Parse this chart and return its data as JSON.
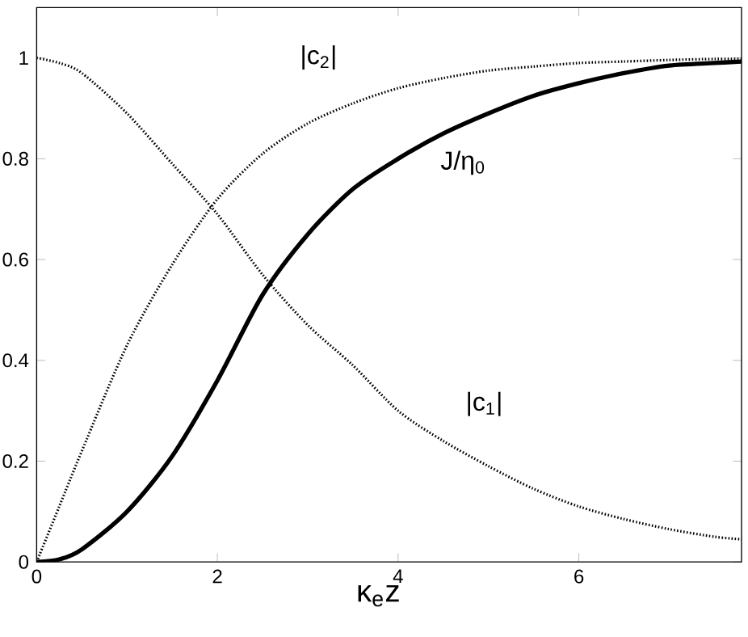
{
  "chart_data": {
    "type": "line",
    "xlabel": "κ$_{e}$z",
    "x": [
      0,
      0.25,
      0.5,
      1,
      1.5,
      2,
      2.5,
      3,
      3.5,
      4,
      4.5,
      5,
      5.5,
      6,
      6.5,
      7,
      7.5,
      7.8
    ],
    "series": [
      {
        "color": "#000000",
        "line_style": "dotted",
        "values": [
          1.0,
          0.99,
          0.97,
          0.89,
          0.79,
          0.69,
          0.57,
          0.47,
          0.39,
          0.3,
          0.24,
          0.19,
          0.145,
          0.11,
          0.085,
          0.065,
          0.05,
          0.045
        ]
      },
      {
        "color": "#000000",
        "line_style": "dotted",
        "values": [
          0,
          0.11,
          0.22,
          0.43,
          0.59,
          0.72,
          0.81,
          0.87,
          0.91,
          0.94,
          0.96,
          0.975,
          0.983,
          0.99,
          0.993,
          0.996,
          0.998,
          0.998
        ]
      },
      {
        "color": "#000000",
        "line_style": "solid",
        "values": [
          0,
          0.005,
          0.025,
          0.1,
          0.21,
          0.36,
          0.53,
          0.65,
          0.74,
          0.8,
          0.85,
          0.89,
          0.925,
          0.95,
          0.97,
          0.985,
          0.99,
          0.993
        ]
      }
    ],
    "annotations": [
      "|c$_{2}$|",
      "J/η$_{0}$",
      "|c$_{1}$|"
    ],
    "xlim": [
      0,
      7.8
    ],
    "ylim": [
      0,
      1.1
    ],
    "xticks": [
      0,
      2,
      4,
      6
    ],
    "yticks": [
      0,
      0.2,
      0.4,
      0.6,
      0.8,
      1
    ],
    "grid": false,
    "marker": "none"
  }
}
